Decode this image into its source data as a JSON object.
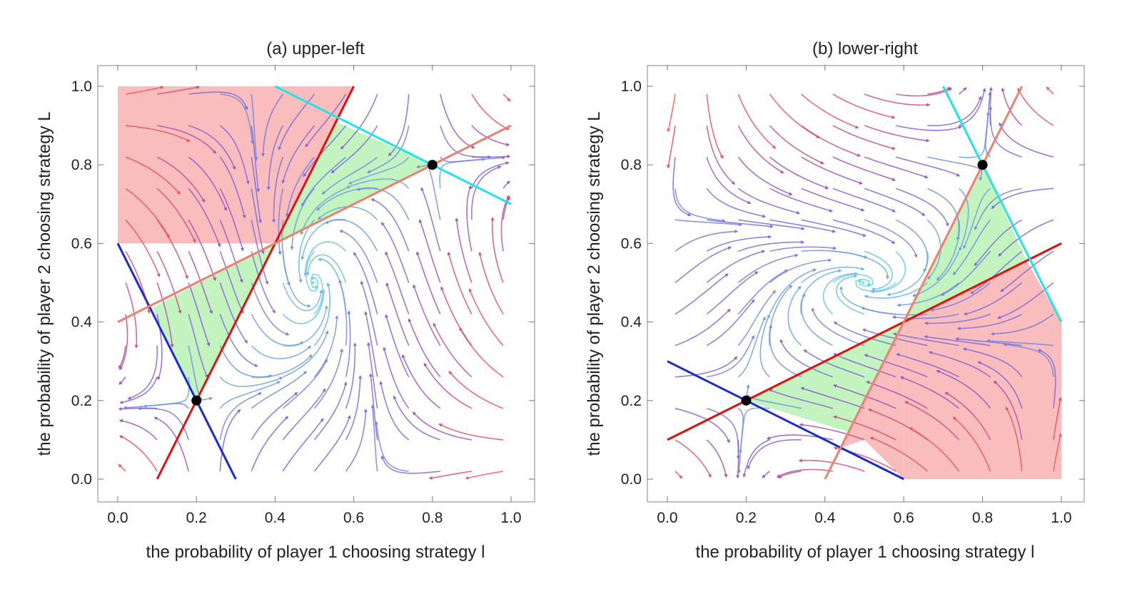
{
  "chart_data": [
    {
      "type": "streamplot",
      "title": "(a) upper-left",
      "xlabel": "the probability of player 1 choosing strategy l",
      "ylabel": "the probability of player 2 choosing strategy L",
      "xlim": [
        0.0,
        1.0
      ],
      "ylim": [
        0.0,
        1.0
      ],
      "xticks": [
        "0.0",
        "0.2",
        "0.4",
        "0.6",
        "0.8",
        "1.0"
      ],
      "yticks": [
        "0.0",
        "0.2",
        "0.4",
        "0.6",
        "0.8",
        "1.0"
      ],
      "grid": false,
      "colors": {
        "blue": "#1a2ad0",
        "cyan": "#22e3e8",
        "red": "#e01010",
        "salmon": "#ee8070",
        "region_red": "#f7b2b0",
        "region_green": "#b8f2b4",
        "dot": "#000000"
      },
      "regions": [
        {
          "color": "region_red",
          "points": [
            [
              0.0,
              1.0
            ],
            [
              0.4,
              1.0
            ],
            [
              0.4,
              0.6
            ],
            [
              0.0,
              0.6
            ]
          ]
        },
        {
          "color": "region_red",
          "points": [
            [
              0.4,
              1.0
            ],
            [
              0.6,
              1.0
            ],
            [
              0.5,
              0.8
            ],
            [
              0.4,
              0.6
            ]
          ]
        },
        {
          "color": "region_green",
          "points": [
            [
              0.555,
              0.91
            ],
            [
              0.8,
              0.8
            ],
            [
              0.4,
              0.6
            ]
          ]
        },
        {
          "color": "region_green",
          "points": [
            [
              0.4,
              0.6
            ],
            [
              0.088,
              0.4356
            ],
            [
              0.2,
              0.2
            ]
          ]
        }
      ],
      "lines": [
        {
          "color": "blue",
          "points": [
            [
              0.0,
              0.6
            ],
            [
              0.3,
              0.0
            ]
          ]
        },
        {
          "color": "red",
          "points": [
            [
              0.1,
              0.0
            ],
            [
              0.6,
              1.0
            ]
          ]
        },
        {
          "color": "salmon",
          "points": [
            [
              0.0,
              0.4
            ],
            [
              1.0,
              0.9
            ]
          ]
        },
        {
          "color": "cyan",
          "points": [
            [
              0.4,
              1.0
            ],
            [
              1.0,
              0.7
            ]
          ]
        }
      ],
      "points": [
        {
          "x": 0.2,
          "y": 0.2
        },
        {
          "x": 0.8,
          "y": 0.8
        }
      ],
      "field": {
        "p": [
          0.2,
          0.8
        ],
        "q": [
          0.2,
          0.8
        ]
      }
    },
    {
      "type": "streamplot",
      "title": "(b) lower-right",
      "xlabel": "the probability of player 1 choosing strategy l",
      "ylabel": "the probability of player 2 choosing strategy L",
      "xlim": [
        0.0,
        1.0
      ],
      "ylim": [
        0.0,
        1.0
      ],
      "xticks": [
        "0.0",
        "0.2",
        "0.4",
        "0.6",
        "0.8",
        "1.0"
      ],
      "yticks": [
        "0.0",
        "0.2",
        "0.4",
        "0.6",
        "0.8",
        "1.0"
      ],
      "grid": false,
      "colors": {
        "blue": "#1a2ad0",
        "cyan": "#22e3e8",
        "red": "#e01010",
        "salmon": "#ee8070",
        "region_red": "#f7b2b0",
        "region_green": "#b8f2b4",
        "dot": "#000000"
      },
      "regions": [
        {
          "color": "region_red",
          "points": [
            [
              0.6,
              0.0
            ],
            [
              1.0,
              0.0
            ],
            [
              1.0,
              0.4
            ],
            [
              0.6,
              0.4
            ]
          ]
        },
        {
          "color": "region_red",
          "points": [
            [
              0.6,
              0.4
            ],
            [
              0.44,
              0.08
            ],
            [
              0.5,
              0.1
            ],
            [
              0.6,
              0.0
            ]
          ]
        },
        {
          "color": "region_red",
          "points": [
            [
              0.6,
              0.4
            ],
            [
              0.912,
              0.556
            ],
            [
              1.0,
              0.4
            ]
          ]
        },
        {
          "color": "region_green",
          "points": [
            [
              0.8,
              0.8
            ],
            [
              0.912,
              0.556
            ],
            [
              0.6,
              0.4
            ]
          ]
        },
        {
          "color": "region_green",
          "points": [
            [
              0.2,
              0.2
            ],
            [
              0.6,
              0.4
            ],
            [
              0.46,
              0.12
            ]
          ]
        }
      ],
      "lines": [
        {
          "color": "blue",
          "points": [
            [
              0.0,
              0.3
            ],
            [
              0.6,
              0.0
            ]
          ]
        },
        {
          "color": "red",
          "points": [
            [
              0.0,
              0.1
            ],
            [
              1.0,
              0.6
            ]
          ]
        },
        {
          "color": "salmon",
          "points": [
            [
              0.4,
              0.0
            ],
            [
              0.9,
              1.0
            ]
          ]
        },
        {
          "color": "cyan",
          "points": [
            [
              0.7,
              1.0
            ],
            [
              1.0,
              0.4
            ]
          ]
        }
      ],
      "points": [
        {
          "x": 0.2,
          "y": 0.2
        },
        {
          "x": 0.8,
          "y": 0.8
        }
      ],
      "field": {
        "p": [
          0.2,
          0.8
        ],
        "q": [
          0.2,
          0.8
        ]
      }
    }
  ]
}
